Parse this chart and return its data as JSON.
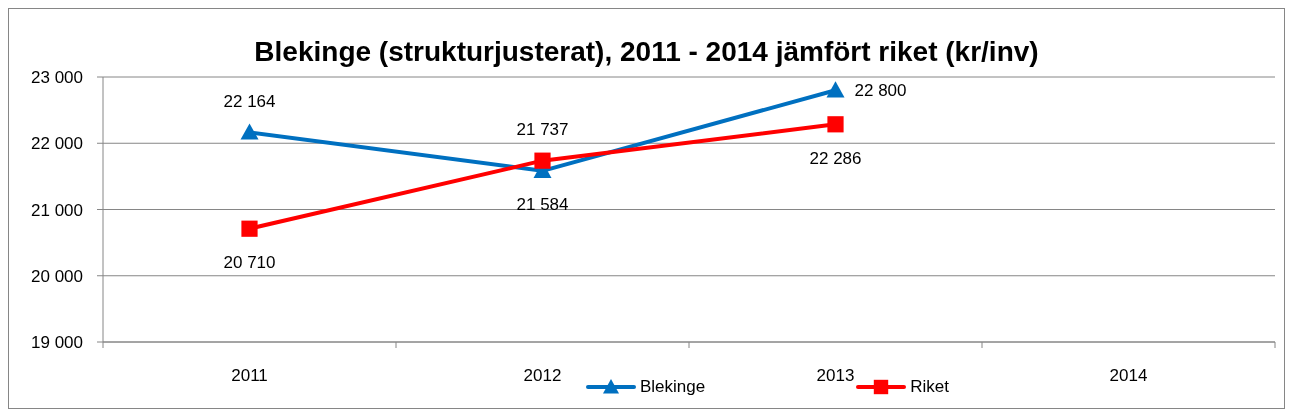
{
  "chart_data": {
    "type": "line",
    "title": "Blekinge (strukturjusterat), 2011 - 2014 jämfört riket (kr/inv)",
    "categories": [
      "2011",
      "2012",
      "2013",
      "2014"
    ],
    "series": [
      {
        "name": "Blekinge",
        "color": "#0070c0",
        "marker": "triangle",
        "values": [
          22164,
          21584,
          22800,
          null
        ],
        "value_labels": [
          "22 164",
          "21 584",
          "22 800",
          null
        ]
      },
      {
        "name": "Riket",
        "color": "#ff0000",
        "marker": "square",
        "values": [
          20710,
          21737,
          22286,
          null
        ],
        "value_labels": [
          "20 710",
          "21 737",
          "22 286",
          null
        ]
      }
    ],
    "ylim": [
      19000,
      23000
    ],
    "yticks": [
      {
        "value": 19000,
        "label": "19 000"
      },
      {
        "value": 20000,
        "label": "20 000"
      },
      {
        "value": 21000,
        "label": "21 000"
      },
      {
        "value": 22000,
        "label": "22 000"
      },
      {
        "value": 23000,
        "label": "23 000"
      }
    ],
    "grid": "y",
    "legend": "bottom"
  }
}
